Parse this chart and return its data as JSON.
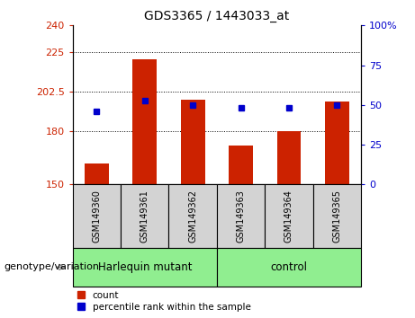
{
  "title": "GDS3365 / 1443033_at",
  "samples": [
    "GSM149360",
    "GSM149361",
    "GSM149362",
    "GSM149363",
    "GSM149364",
    "GSM149365"
  ],
  "counts": [
    162,
    221,
    198,
    172,
    180,
    197
  ],
  "percentile_ranks": [
    46,
    53,
    50,
    48,
    48,
    50
  ],
  "bar_color": "#CC2200",
  "dot_color": "#0000CC",
  "ylim_left": [
    150,
    240
  ],
  "ylim_right": [
    0,
    100
  ],
  "yticks_left": [
    150,
    180,
    202.5,
    225,
    240
  ],
  "ytick_labels_left": [
    "150",
    "180",
    "202.5",
    "225",
    "240"
  ],
  "yticks_right": [
    0,
    25,
    50,
    75,
    100
  ],
  "ytick_labels_right": [
    "0",
    "25",
    "50",
    "75",
    "100%"
  ],
  "hlines": [
    180,
    202.5,
    225
  ],
  "xlabel": "genotype/variation",
  "legend_count_label": "count",
  "legend_percentile_label": "percentile rank within the sample",
  "bar_width": 0.5,
  "background_color": "#ffffff",
  "cell_color": "#d3d3d3",
  "group_color": "#90EE90",
  "groups_info": [
    {
      "label": "Harlequin mutant",
      "start": 0,
      "end": 3
    },
    {
      "label": "control",
      "start": 3,
      "end": 6
    }
  ]
}
